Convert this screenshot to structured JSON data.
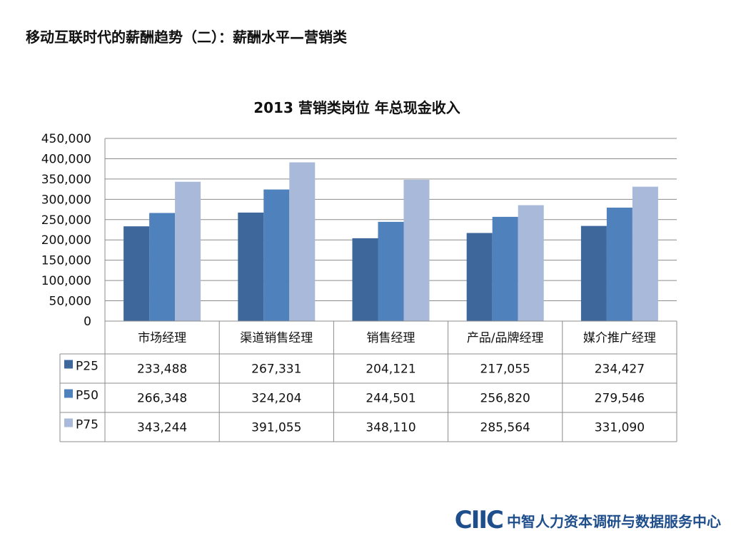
{
  "page": {
    "title": "移动互联时代的薪酬趋势（二）：薪酬水平—营销类"
  },
  "footer": {
    "logo_text": "CIIC",
    "org_name": "中智人力资本调研与数据服务中心"
  },
  "chart_data": {
    "type": "bar",
    "title": "2013 营销类岗位 年总现金收入",
    "categories": [
      "市场经理",
      "渠道销售经理",
      "销售经理",
      "产品/品牌经理",
      "媒介推广经理"
    ],
    "series": [
      {
        "name": "P25",
        "color": "#3e679b",
        "values": [
          233488,
          267331,
          204121,
          217055,
          234427
        ],
        "labels": [
          "233,488",
          "267,331",
          "204,121",
          "217,055",
          "234,427"
        ]
      },
      {
        "name": "P50",
        "color": "#4f81bd",
        "values": [
          266348,
          324204,
          244501,
          256820,
          279546
        ],
        "labels": [
          "266,348",
          "324,204",
          "244,501",
          "256,820",
          "279,546"
        ]
      },
      {
        "name": "P75",
        "color": "#a9b9d9",
        "values": [
          343244,
          391055,
          348110,
          285564,
          331090
        ],
        "labels": [
          "343,244",
          "391,055",
          "348,110",
          "285,564",
          "331,090"
        ]
      }
    ],
    "ylim": [
      0,
      450000
    ],
    "yticks": [
      "0",
      "50,000",
      "100,000",
      "150,000",
      "200,000",
      "250,000",
      "300,000",
      "350,000",
      "400,000",
      "450,000"
    ],
    "grid": true,
    "legend": "data-table"
  }
}
